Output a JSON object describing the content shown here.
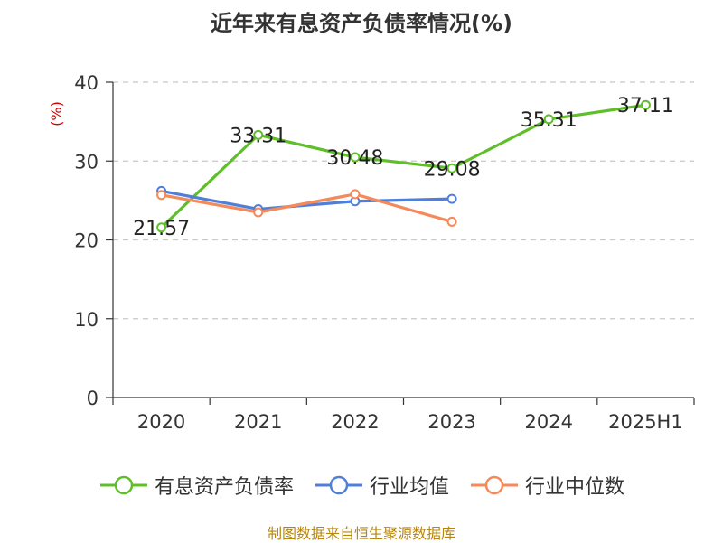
{
  "chart_data": {
    "type": "line",
    "title": "近年来有息资产负债率情况(%)",
    "ylabel": "(%)",
    "xlabel": "",
    "categories": [
      "2020",
      "2021",
      "2022",
      "2023",
      "2024",
      "2025H1"
    ],
    "ylim": [
      0,
      40
    ],
    "yticks": [
      0,
      10,
      20,
      30,
      40
    ],
    "grid": true,
    "legend_position": "bottom",
    "series": [
      {
        "name": "有息资产负债率",
        "color": "#5fbf2a",
        "values": [
          21.57,
          33.31,
          30.48,
          29.08,
          35.31,
          37.11
        ],
        "data_labels": [
          "21.57",
          "33.31",
          "30.48",
          "29.08",
          "35.31",
          "37.11"
        ]
      },
      {
        "name": "行业均值",
        "color": "#4f7fd8",
        "values": [
          26.2,
          23.9,
          24.9,
          25.2,
          null,
          null
        ]
      },
      {
        "name": "行业中位数",
        "color": "#f5895a",
        "values": [
          25.7,
          23.5,
          25.8,
          22.3,
          null,
          null
        ]
      }
    ]
  },
  "footer": {
    "source": "制图数据来自恒生聚源数据库"
  }
}
